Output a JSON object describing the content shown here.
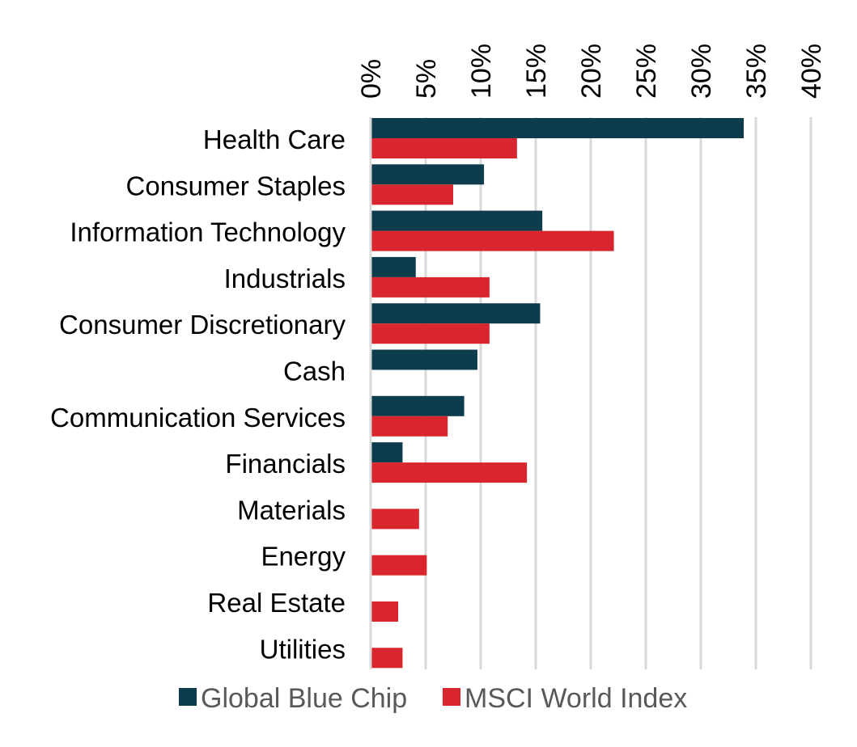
{
  "chart_data": {
    "type": "bar",
    "orientation": "horizontal",
    "categories": [
      "Health Care",
      "Consumer Staples",
      "Information Technology",
      "Industrials",
      "Consumer Discretionary",
      "Cash",
      "Communication Services",
      "Financials",
      "Materials",
      "Energy",
      "Real Estate",
      "Utilities"
    ],
    "series": [
      {
        "name": "Global Blue Chip",
        "color": "#0d3d4d",
        "values": [
          33.9,
          10.3,
          15.6,
          4.1,
          15.4,
          9.7,
          8.5,
          2.9,
          null,
          null,
          null,
          null
        ]
      },
      {
        "name": "MSCI World Index",
        "color": "#d9262e",
        "values": [
          13.3,
          7.5,
          22.1,
          10.8,
          10.8,
          null,
          7.0,
          14.2,
          4.4,
          5.1,
          2.5,
          2.9
        ]
      }
    ],
    "xticks": [
      "0%",
      "5%",
      "10%",
      "15%",
      "20%",
      "25%",
      "30%",
      "35%",
      "40%"
    ],
    "xlim": [
      0,
      40
    ],
    "grid": true,
    "axis_position": "top",
    "legend": "bottom"
  }
}
